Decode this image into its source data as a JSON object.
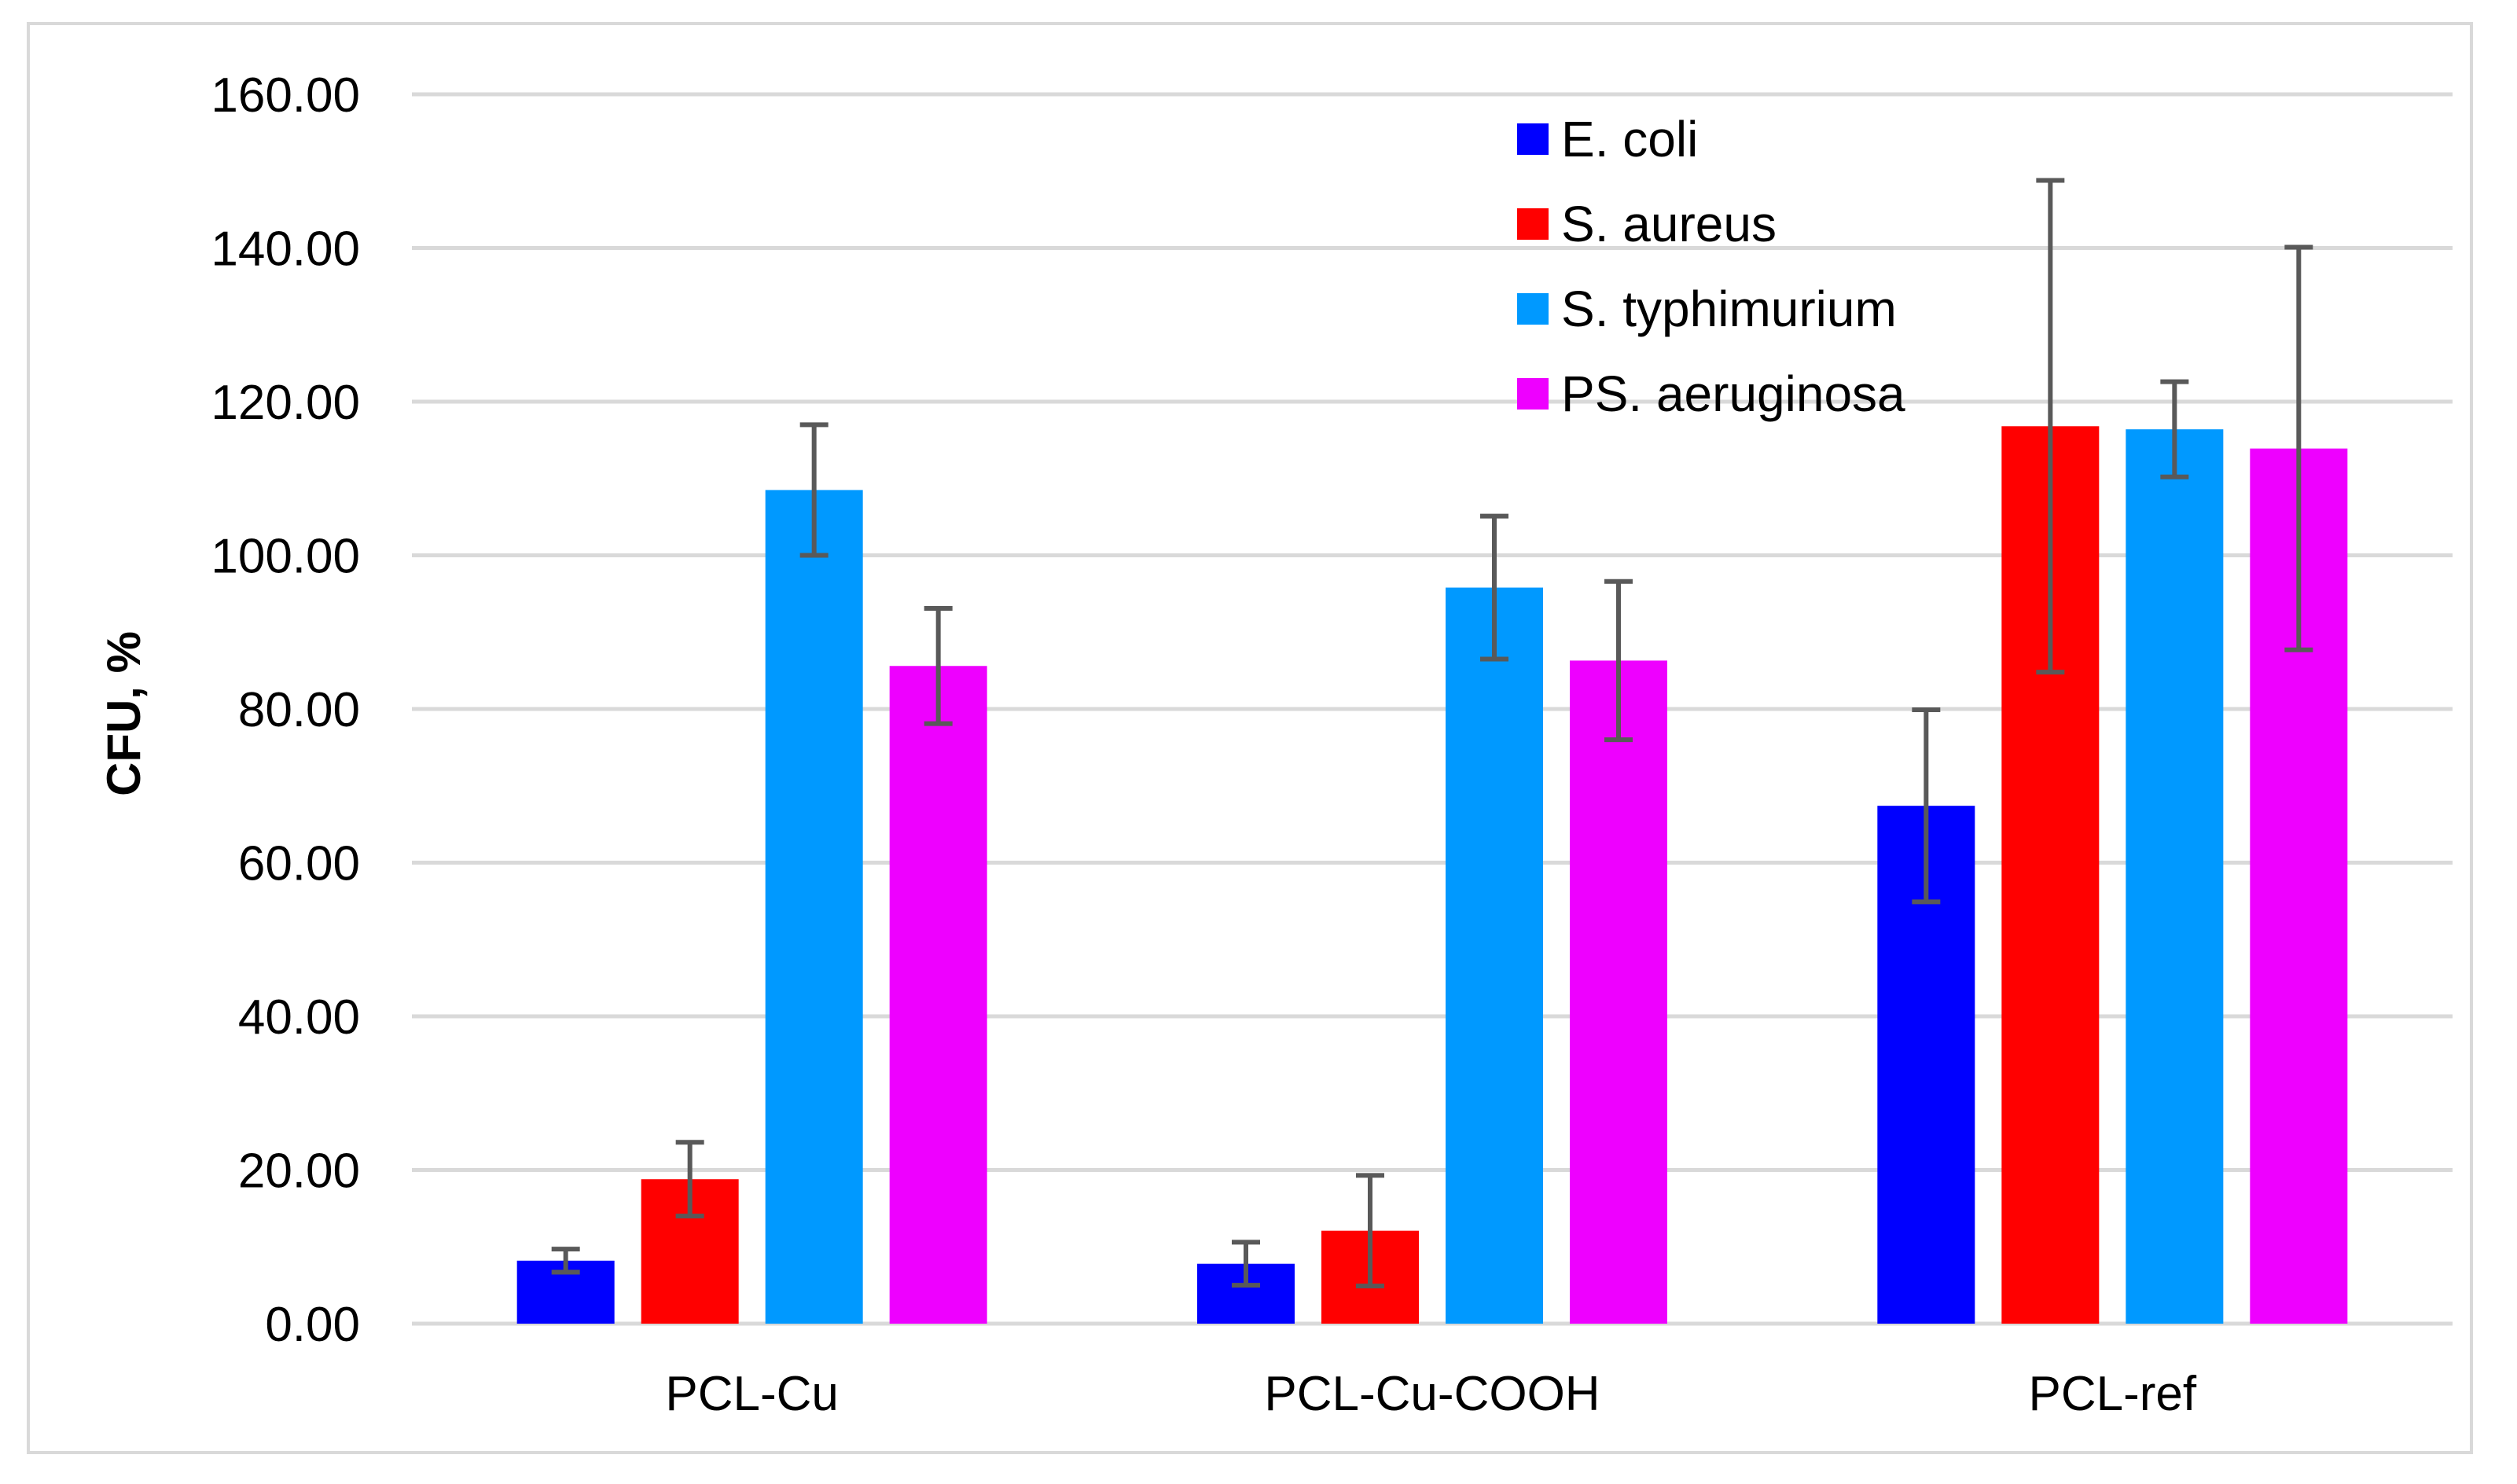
{
  "chart_data": {
    "type": "bar",
    "title": "",
    "xlabel": "",
    "ylabel": "CFU, %",
    "ylim": [
      0,
      160
    ],
    "yticks": [
      0,
      20,
      40,
      60,
      80,
      100,
      120,
      140,
      160
    ],
    "ytick_labels": [
      "0.00",
      "20.00",
      "40.00",
      "60.00",
      "80.00",
      "100.00",
      "120.00",
      "140.00",
      "160.00"
    ],
    "grid": true,
    "legend_position": "top-right",
    "categories": [
      "PCL-Cu",
      "PCL-Cu-COOH",
      "PCL-ref"
    ],
    "series": [
      {
        "name": "E. coli",
        "color": "#0000ff",
        "values": [
          8.2,
          7.8,
          67.4
        ],
        "errors": [
          1.5,
          2.8,
          12.5
        ]
      },
      {
        "name": "S. aureus",
        "color": "#ff0000",
        "values": [
          18.8,
          12.1,
          116.8
        ],
        "errors": [
          4.8,
          7.2,
          32.0
        ]
      },
      {
        "name": "S. typhimurium",
        "color": "#0099ff",
        "values": [
          108.5,
          95.8,
          116.4
        ],
        "errors": [
          8.5,
          9.3,
          6.2
        ]
      },
      {
        "name": "PS. aeruginosa",
        "color": "#ee00ff",
        "values": [
          85.6,
          86.3,
          113.9
        ],
        "errors": [
          7.5,
          10.3,
          26.2
        ]
      }
    ]
  }
}
